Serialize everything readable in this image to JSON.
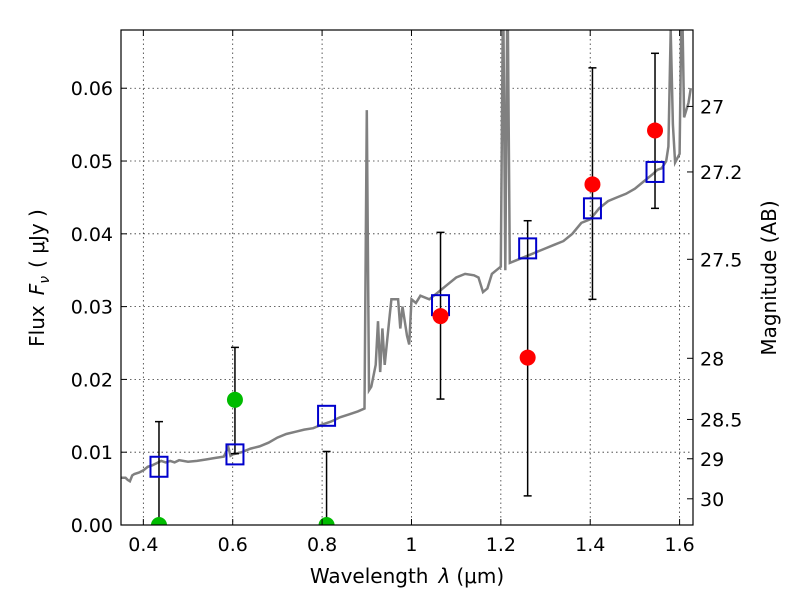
{
  "chart_data": {
    "type": "scatter",
    "xlabel_prefix": "Wavelength",
    "xlabel_symbol": "λ",
    "xlabel_unit": "(μm)",
    "ylabel_prefix": "Flux",
    "ylabel_symbol": "F",
    "ylabel_subscript": "ν",
    "ylabel_unit": "( μJy )",
    "y2label": "Magnitude (AB)",
    "xlim": [
      0.35,
      1.63
    ],
    "ylim": [
      0,
      0.068
    ],
    "grid": true,
    "x_ticks": [
      0.4,
      0.6,
      0.8,
      1.0,
      1.2,
      1.4,
      1.6
    ],
    "x_tick_labels": [
      "0.4",
      "0.6",
      "0.8",
      "1",
      "1.2",
      "1.4",
      "1.6"
    ],
    "y_ticks": [
      0,
      0.01,
      0.02,
      0.03,
      0.04,
      0.05,
      0.06
    ],
    "y_tick_labels": [
      "0.00",
      "0.01",
      "0.02",
      "0.03",
      "0.04",
      "0.05",
      "0.06"
    ],
    "mag_ticks": [
      {
        "label": "27",
        "flux": 0.0575
      },
      {
        "label": "27.2",
        "flux": 0.0485
      },
      {
        "label": "27.5",
        "flux": 0.0365
      },
      {
        "label": "28",
        "flux": 0.0229
      },
      {
        "label": "28.5",
        "flux": 0.0145
      },
      {
        "label": "29",
        "flux": 0.0091
      },
      {
        "label": "30",
        "flux": 0.0036
      }
    ],
    "colors": {
      "model": "#808080",
      "model_points": "#0000cc",
      "detections": "#ff0000",
      "upper_limits": "#00bb00",
      "errorbar": "#000000"
    },
    "model_spectrum": [
      [
        0.35,
        0.0065
      ],
      [
        0.36,
        0.0065
      ],
      [
        0.365,
        0.0062
      ],
      [
        0.37,
        0.006
      ],
      [
        0.375,
        0.0068
      ],
      [
        0.38,
        0.007
      ],
      [
        0.39,
        0.0072
      ],
      [
        0.4,
        0.0075
      ],
      [
        0.41,
        0.008
      ],
      [
        0.42,
        0.0082
      ],
      [
        0.43,
        0.0085
      ],
      [
        0.44,
        0.0088
      ],
      [
        0.45,
        0.0086
      ],
      [
        0.46,
        0.0088
      ],
      [
        0.47,
        0.0086
      ],
      [
        0.48,
        0.0089
      ],
      [
        0.5,
        0.0087
      ],
      [
        0.52,
        0.0088
      ],
      [
        0.54,
        0.009
      ],
      [
        0.56,
        0.0092
      ],
      [
        0.58,
        0.0094
      ],
      [
        0.59,
        0.0107
      ],
      [
        0.595,
        0.0095
      ],
      [
        0.6,
        0.0097
      ],
      [
        0.62,
        0.01
      ],
      [
        0.64,
        0.0105
      ],
      [
        0.66,
        0.0108
      ],
      [
        0.68,
        0.0113
      ],
      [
        0.7,
        0.012
      ],
      [
        0.72,
        0.0125
      ],
      [
        0.74,
        0.0128
      ],
      [
        0.76,
        0.0131
      ],
      [
        0.78,
        0.0133
      ],
      [
        0.8,
        0.0138
      ],
      [
        0.82,
        0.0142
      ],
      [
        0.84,
        0.0148
      ],
      [
        0.86,
        0.0152
      ],
      [
        0.88,
        0.0156
      ],
      [
        0.895,
        0.016
      ],
      [
        0.9,
        0.057
      ],
      [
        0.905,
        0.0185
      ],
      [
        0.91,
        0.019
      ],
      [
        0.92,
        0.022
      ],
      [
        0.925,
        0.028
      ],
      [
        0.93,
        0.021
      ],
      [
        0.935,
        0.027
      ],
      [
        0.94,
        0.022
      ],
      [
        0.95,
        0.028
      ],
      [
        0.955,
        0.031
      ],
      [
        0.96,
        0.031
      ],
      [
        0.97,
        0.031
      ],
      [
        0.975,
        0.027
      ],
      [
        0.98,
        0.03
      ],
      [
        0.99,
        0.026
      ],
      [
        0.995,
        0.0248
      ],
      [
        1.0,
        0.031
      ],
      [
        1.01,
        0.0305
      ],
      [
        1.02,
        0.0315
      ],
      [
        1.04,
        0.031
      ],
      [
        1.06,
        0.032
      ],
      [
        1.08,
        0.033
      ],
      [
        1.1,
        0.034
      ],
      [
        1.12,
        0.0345
      ],
      [
        1.14,
        0.0343
      ],
      [
        1.15,
        0.034
      ],
      [
        1.16,
        0.032
      ],
      [
        1.17,
        0.0325
      ],
      [
        1.18,
        0.0345
      ],
      [
        1.19,
        0.035
      ],
      [
        1.2,
        0.0355
      ],
      [
        1.205,
        0.075
      ],
      [
        1.21,
        0.035
      ],
      [
        1.215,
        0.075
      ],
      [
        1.22,
        0.036
      ],
      [
        1.24,
        0.0365
      ],
      [
        1.26,
        0.037
      ],
      [
        1.28,
        0.0375
      ],
      [
        1.3,
        0.038
      ],
      [
        1.32,
        0.0385
      ],
      [
        1.34,
        0.039
      ],
      [
        1.36,
        0.04
      ],
      [
        1.38,
        0.0415
      ],
      [
        1.4,
        0.042
      ],
      [
        1.42,
        0.0435
      ],
      [
        1.44,
        0.0445
      ],
      [
        1.46,
        0.045
      ],
      [
        1.48,
        0.0455
      ],
      [
        1.5,
        0.0462
      ],
      [
        1.52,
        0.0472
      ],
      [
        1.54,
        0.0482
      ],
      [
        1.55,
        0.0488
      ],
      [
        1.56,
        0.049
      ],
      [
        1.57,
        0.05
      ],
      [
        1.575,
        0.052
      ],
      [
        1.58,
        0.068
      ],
      [
        1.585,
        0.055
      ],
      [
        1.59,
        0.0498
      ],
      [
        1.6,
        0.051
      ],
      [
        1.605,
        0.075
      ],
      [
        1.61,
        0.056
      ],
      [
        1.62,
        0.058
      ],
      [
        1.625,
        0.06
      ]
    ],
    "model_points": [
      {
        "x": 0.435,
        "y": 0.008
      },
      {
        "x": 0.605,
        "y": 0.0097
      },
      {
        "x": 0.81,
        "y": 0.015
      },
      {
        "x": 1.065,
        "y": 0.0302
      },
      {
        "x": 1.26,
        "y": 0.038
      },
      {
        "x": 1.405,
        "y": 0.0435
      },
      {
        "x": 1.545,
        "y": 0.0485
      }
    ],
    "detections": [
      {
        "x": 1.065,
        "y": 0.0287,
        "err_low": 0.0173,
        "err_high": 0.0402
      },
      {
        "x": 1.26,
        "y": 0.023,
        "err_low": 0.004,
        "err_high": 0.0418
      },
      {
        "x": 1.405,
        "y": 0.0468,
        "err_low": 0.031,
        "err_high": 0.0628
      },
      {
        "x": 1.545,
        "y": 0.0542,
        "err_low": 0.0435,
        "err_high": 0.0648
      }
    ],
    "upper_limits": [
      {
        "x": 0.435,
        "y": 0.0,
        "err_low": 0.0,
        "err_high": 0.0142
      },
      {
        "x": 0.605,
        "y": 0.0172,
        "err_low": 0.0098,
        "err_high": 0.0244
      },
      {
        "x": 0.81,
        "y": 0.0,
        "err_low": 0.0,
        "err_high": 0.0101
      }
    ]
  }
}
